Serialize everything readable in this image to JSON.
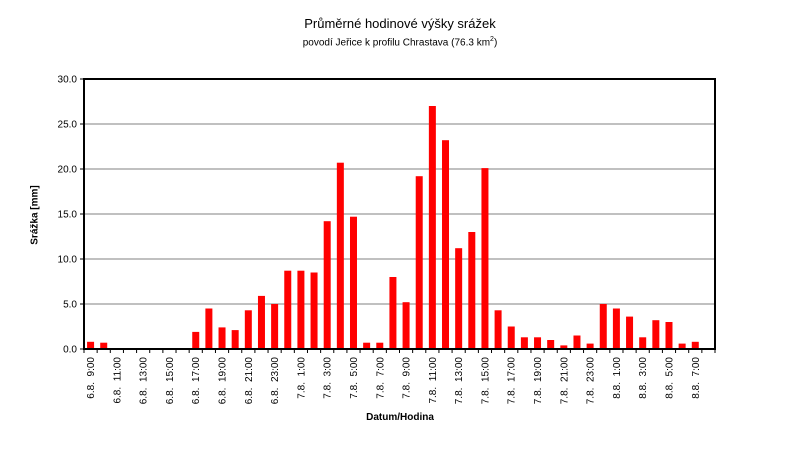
{
  "chart_data": {
    "type": "bar",
    "title": "Průměrné hodinové výšky srážek",
    "subtitle": "povodí Jeřice k profilu Chrastava (76.3 km²)",
    "subtitle_prefix": "povodí Jeřice k profilu Chrastava (76.3 km",
    "subtitle_sup": "2",
    "subtitle_suffix": ")",
    "xlabel": "Datum/Hodina",
    "ylabel": "Srážka [mm]",
    "ylim": [
      0,
      30
    ],
    "yticks": [
      "0.0",
      "5.0",
      "10.0",
      "15.0",
      "20.0",
      "25.0",
      "30.0"
    ],
    "grid": true,
    "legend": null,
    "bar_color": "#ff0000",
    "categories": [
      "6.8. 9:00",
      "6.8. 10:00",
      "6.8. 11:00",
      "6.8. 12:00",
      "6.8. 13:00",
      "6.8. 14:00",
      "6.8. 15:00",
      "6.8. 16:00",
      "6.8. 17:00",
      "6.8. 18:00",
      "6.8. 19:00",
      "6.8. 20:00",
      "6.8. 21:00",
      "6.8. 22:00",
      "6.8. 23:00",
      "7.8. 0:00",
      "7.8. 1:00",
      "7.8. 2:00",
      "7.8. 3:00",
      "7.8. 4:00",
      "7.8. 5:00",
      "7.8. 6:00",
      "7.8. 7:00",
      "7.8. 8:00",
      "7.8. 9:00",
      "7.8. 10:00",
      "7.8. 11:00",
      "7.8. 12:00",
      "7.8. 13:00",
      "7.8. 14:00",
      "7.8. 15:00",
      "7.8. 16:00",
      "7.8. 17:00",
      "7.8. 18:00",
      "7.8. 19:00",
      "7.8. 20:00",
      "7.8. 21:00",
      "7.8. 22:00",
      "7.8. 23:00",
      "8.8. 0:00",
      "8.8. 1:00",
      "8.8. 2:00",
      "8.8. 3:00",
      "8.8. 4:00",
      "8.8. 5:00",
      "8.8. 6:00",
      "8.8. 7:00",
      "8.8. 8:00"
    ],
    "visible_xtick_labels": [
      "6.8. 9:00",
      "6.8. 11:00",
      "6.8. 13:00",
      "6.8. 15:00",
      "6.8. 17:00",
      "6.8. 19:00",
      "6.8. 21:00",
      "6.8. 23:00",
      "7.8. 1:00",
      "7.8. 3:00",
      "7.8. 5:00",
      "7.8. 7:00",
      "7.8. 9:00",
      "7.8. 11:00",
      "7.8. 13:00",
      "7.8. 15:00",
      "7.8. 17:00",
      "7.8. 19:00",
      "7.8. 21:00",
      "7.8. 23:00",
      "8.8. 1:00",
      "8.8. 3:00",
      "8.8. 5:00",
      "8.8. 7:00"
    ],
    "values": [
      0.8,
      0.7,
      0.1,
      0.1,
      0.1,
      0.1,
      0.0,
      0.0,
      1.9,
      4.5,
      2.4,
      2.1,
      4.3,
      5.9,
      5.0,
      8.7,
      8.7,
      8.5,
      14.2,
      20.7,
      14.7,
      0.7,
      0.7,
      8.0,
      5.2,
      19.2,
      27.0,
      23.2,
      11.2,
      13.0,
      20.1,
      4.3,
      2.5,
      1.3,
      1.3,
      1.0,
      0.4,
      1.5,
      0.6,
      5.0,
      4.5,
      3.6,
      1.3,
      3.2,
      3.0,
      0.6,
      0.8,
      0.1
    ]
  }
}
